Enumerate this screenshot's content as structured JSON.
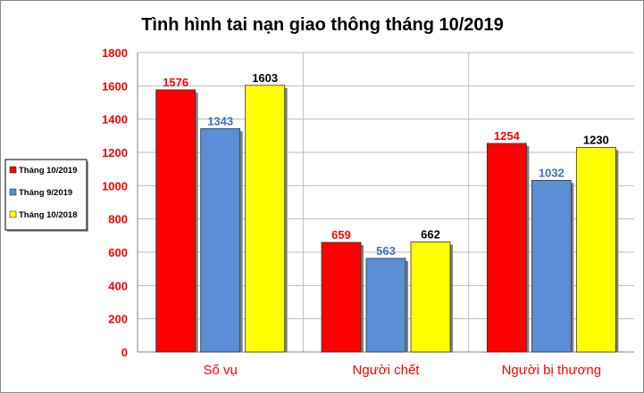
{
  "chart_data": {
    "type": "bar",
    "title": "Tình hình tai nạn giao thông tháng 10/2019",
    "categories": [
      "Số vụ",
      "Người chết",
      "Người bị thương"
    ],
    "series": [
      {
        "name": "Tháng 10/2019",
        "values": [
          1576,
          659,
          1254
        ],
        "color": "#ff0000",
        "label_color": "#ff0000"
      },
      {
        "name": "Tháng 9/2019",
        "values": [
          1343,
          563,
          1032
        ],
        "color": "#5b8ed6",
        "label_color": "#3f6fc4"
      },
      {
        "name": "Tháng 10/2018",
        "values": [
          1603,
          662,
          1230
        ],
        "color": "#ffff00",
        "label_color": "#000000"
      }
    ],
    "ylim": [
      0,
      1800
    ],
    "yticks": [
      "0",
      "200",
      "400",
      "600",
      "800",
      "1000",
      "1200",
      "1400",
      "1600",
      "1800"
    ],
    "grid": true,
    "legend_position": "left",
    "xlabel": "",
    "ylabel": ""
  }
}
